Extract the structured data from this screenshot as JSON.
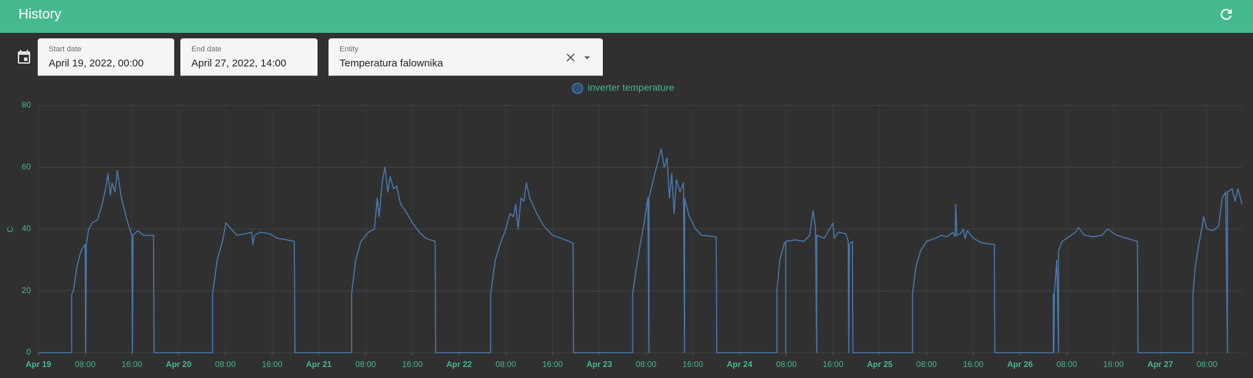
{
  "header": {
    "title": "History"
  },
  "filters": {
    "start_label": "Start date",
    "start_value": "April 19, 2022, 00:00",
    "end_label": "End date",
    "end_value": "April 27, 2022, 14:00",
    "entity_label": "Entity",
    "entity_value": "Temperatura falownika"
  },
  "chart_data": {
    "type": "line",
    "y_label": "C",
    "grid": true,
    "x": [
      0,
      5.7,
      5.7,
      6.0,
      6.6,
      7.3,
      8.0,
      8.1,
      8.2,
      8.6,
      9.2,
      10.1,
      10.9,
      11.5,
      11.9,
      12.3,
      12.6,
      13.1,
      13.5,
      14.2,
      15.3,
      16.0,
      16.1,
      16.2,
      17.0,
      18.0,
      19.7,
      19.8,
      29.8,
      29.8,
      30.6,
      31.5,
      32.1,
      33.0,
      34.0,
      35.5,
      36.5,
      36.7,
      37.0,
      38.0,
      39.5,
      41.0,
      42.5,
      43.8,
      43.9,
      53.6,
      53.6,
      54.3,
      55.2,
      56.5,
      57.5,
      58.0,
      58.3,
      58.9,
      59.3,
      59.8,
      60.2,
      60.8,
      61.3,
      62.0,
      62.8,
      64.0,
      65.2,
      66.3,
      67.9,
      68.0,
      77.4,
      77.4,
      78.2,
      79.2,
      80.0,
      80.7,
      81.3,
      81.7,
      82.1,
      82.6,
      83.1,
      83.5,
      84.1,
      85.3,
      86.5,
      88.0,
      89.5,
      91.5,
      91.6,
      101.7,
      101.7,
      102.3,
      103.0,
      103.5,
      104.3,
      104.5,
      104.5,
      105.5,
      106.6,
      107.1,
      107.6,
      108.0,
      108.4,
      108.8,
      109.2,
      109.8,
      110.4,
      110.6,
      110.6,
      111.4,
      112.5,
      113.5,
      116.0,
      116.1,
      126.4,
      126.4,
      126.9,
      127.6,
      127.9,
      127.9,
      127.9,
      129.5,
      131.0,
      132.0,
      132.6,
      133.0,
      133.2,
      133.2,
      134.5,
      136.0,
      136.2,
      136.9,
      138.2,
      138.6,
      138.7,
      138.8,
      139.3,
      139.4,
      149.6,
      149.6,
      150.2,
      151.0,
      152.0,
      153.5,
      154.5,
      155.5,
      156.5,
      156.9,
      157.0,
      157.2,
      157.8,
      158.3,
      158.6,
      159.0,
      160.0,
      161.5,
      163.6,
      163.7,
      173.7,
      173.7,
      173.8,
      173.9,
      174.3,
      174.6,
      174.6,
      175.2,
      176.0,
      177.5,
      178.0,
      179.0,
      180.5,
      182.0,
      183.0,
      184.5,
      188.1,
      188.2,
      197.6,
      197.6,
      198.0,
      198.6,
      199.2,
      199.4,
      200.0,
      201.0,
      202.0,
      202.6,
      203.2,
      203.5,
      203.5,
      204.3,
      204.8,
      205.3,
      206.0
    ],
    "series": [
      {
        "name": "inverter temperature",
        "color": "#4a78ad",
        "values": [
          0,
          0,
          19,
          20,
          28,
          33,
          35,
          0,
          35,
          40,
          42,
          43,
          48,
          53,
          58,
          51,
          55,
          52,
          59,
          50,
          42,
          38,
          0,
          38,
          39.5,
          38,
          38,
          0,
          0,
          19,
          30,
          36,
          42,
          40,
          38,
          38.5,
          39,
          35,
          38,
          39,
          38.5,
          37,
          36.5,
          36,
          0,
          0,
          19,
          30,
          36,
          39,
          40,
          50,
          44,
          56,
          60,
          52,
          57,
          53,
          54,
          48,
          46,
          42,
          39,
          37,
          36,
          0,
          0,
          19,
          30,
          36,
          40,
          45,
          44,
          48,
          40,
          50,
          49,
          55,
          50,
          45,
          41,
          38,
          37,
          35.5,
          0,
          0,
          19,
          27,
          35,
          40,
          50,
          0,
          50,
          58,
          66,
          60,
          63,
          50,
          58,
          45,
          56,
          52,
          55,
          0,
          50,
          44,
          40,
          38,
          37.5,
          0,
          0,
          20,
          30,
          35,
          36,
          0,
          36,
          36.5,
          36,
          38,
          46,
          40,
          0,
          38,
          37,
          42,
          37,
          39,
          38.5,
          36,
          0,
          35,
          36,
          0,
          0,
          19,
          28,
          33,
          36,
          37,
          38,
          37.5,
          39,
          37.5,
          48,
          38,
          38.5,
          40,
          37,
          39.5,
          37,
          35.5,
          35,
          0,
          0,
          19,
          0,
          20,
          30,
          0,
          33,
          36,
          37,
          39,
          40.5,
          38,
          37.5,
          38,
          40,
          38,
          36,
          0,
          0,
          19,
          28,
          35,
          41,
          44,
          40,
          39.5,
          41,
          50,
          52,
          0,
          52,
          53,
          49,
          53,
          48
        ]
      }
    ],
    "xlim": [
      0,
      206
    ],
    "xticks": [
      {
        "value": 0,
        "label": "Apr 19"
      },
      {
        "value": 8,
        "label": "08:00"
      },
      {
        "value": 16,
        "label": "16:00"
      },
      {
        "value": 24,
        "label": "Apr 20"
      },
      {
        "value": 32,
        "label": "08:00"
      },
      {
        "value": 40,
        "label": "16:00"
      },
      {
        "value": 48,
        "label": "Apr 21"
      },
      {
        "value": 56,
        "label": "08:00"
      },
      {
        "value": 64,
        "label": "16:00"
      },
      {
        "value": 72,
        "label": "Apr 22"
      },
      {
        "value": 80,
        "label": "08:00"
      },
      {
        "value": 88,
        "label": "16:00"
      },
      {
        "value": 96,
        "label": "Apr 23"
      },
      {
        "value": 104,
        "label": "08:00"
      },
      {
        "value": 112,
        "label": "16:00"
      },
      {
        "value": 120,
        "label": "Apr 24"
      },
      {
        "value": 128,
        "label": "08:00"
      },
      {
        "value": 136,
        "label": "16:00"
      },
      {
        "value": 144,
        "label": "Apr 25"
      },
      {
        "value": 152,
        "label": "08:00"
      },
      {
        "value": 160,
        "label": "16:00"
      },
      {
        "value": 168,
        "label": "Apr 26"
      },
      {
        "value": 176,
        "label": "08:00"
      },
      {
        "value": 184,
        "label": "16:00"
      },
      {
        "value": 192,
        "label": "Apr 27"
      },
      {
        "value": 200,
        "label": "08:00"
      }
    ],
    "ylim": [
      0,
      80
    ],
    "yticks": [
      0,
      20,
      40,
      60,
      80
    ]
  }
}
